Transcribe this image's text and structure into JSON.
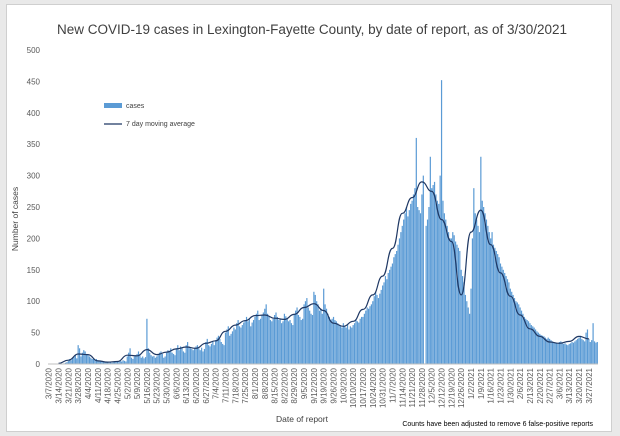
{
  "chart_data": {
    "type": "bar",
    "title": "New COVID-19 cases in Lexington-Fayette County, by date of report, as of 3/30/2021",
    "xlabel": "Date of report",
    "ylabel": "Number of cases",
    "ylim": [
      0,
      500
    ],
    "yticks": [
      "0",
      "50",
      "100",
      "150",
      "200",
      "250",
      "300",
      "350",
      "400",
      "450",
      "500"
    ],
    "grid": false,
    "legend_position": "upper-left",
    "annotation": "Counts have been adjusted to remove 6 false-positive reports",
    "xtick_labels": [
      "3/7/2020",
      "3/14/2020",
      "3/21/2020",
      "3/28/2020",
      "4/4/2020",
      "4/11/2020",
      "4/18/2020",
      "4/25/2020",
      "5/2/2020",
      "5/9/2020",
      "5/16/2020",
      "5/23/2020",
      "5/30/2020",
      "6/6/2020",
      "6/13/2020",
      "6/20/2020",
      "6/27/2020",
      "7/4/2020",
      "7/11/2020",
      "7/18/2020",
      "7/25/2020",
      "8/1/2020",
      "8/8/2020",
      "8/15/2020",
      "8/22/2020",
      "8/29/2020",
      "9/5/2020",
      "9/12/2020",
      "9/19/2020",
      "9/26/2020",
      "10/3/2020",
      "10/10/2020",
      "10/17/2020",
      "10/24/2020",
      "10/31/2020",
      "11/7/2020",
      "11/14/2020",
      "11/21/2020",
      "11/28/2020",
      "12/5/2020",
      "12/12/2020",
      "12/19/2020",
      "12/26/2020",
      "1/2/2021",
      "1/9/2021",
      "1/16/2021",
      "1/23/2021",
      "1/30/2021",
      "2/6/2021",
      "2/13/2021",
      "2/20/2021",
      "2/27/2021",
      "3/6/2021",
      "3/13/2021",
      "3/20/2021",
      "3/27/2021"
    ],
    "series": [
      {
        "name": "cases",
        "kind": "bar",
        "color": "#5b9bd5",
        "weekly_start_dates": [
          "3/7/2020",
          "3/14/2020",
          "3/21/2020",
          "3/28/2020",
          "4/4/2020",
          "4/11/2020",
          "4/18/2020",
          "4/25/2020",
          "5/2/2020",
          "5/9/2020",
          "5/16/2020",
          "5/23/2020",
          "5/30/2020",
          "6/6/2020",
          "6/13/2020",
          "6/20/2020",
          "6/27/2020",
          "7/4/2020",
          "7/11/2020",
          "7/18/2020",
          "7/25/2020",
          "8/1/2020",
          "8/8/2020",
          "8/15/2020",
          "8/22/2020",
          "8/29/2020",
          "9/5/2020",
          "9/12/2020",
          "9/19/2020",
          "9/26/2020",
          "10/3/2020",
          "10/10/2020",
          "10/17/2020",
          "10/24/2020",
          "10/31/2020",
          "11/7/2020",
          "11/14/2020",
          "11/21/2020",
          "11/28/2020",
          "12/5/2020",
          "12/12/2020",
          "12/19/2020",
          "12/26/2020",
          "1/2/2021",
          "1/9/2021",
          "1/16/2021",
          "1/23/2021",
          "1/30/2021",
          "2/6/2021",
          "2/13/2021",
          "2/20/2021",
          "2/27/2021",
          "3/6/2021",
          "3/13/2021",
          "3/20/2021",
          "3/27/2021"
        ],
        "values": [
          [
            0,
            0,
            0,
            0,
            0,
            0,
            0
          ],
          [
            0,
            0,
            0,
            0,
            1,
            2,
            3
          ],
          [
            5,
            8,
            6,
            10,
            12,
            14,
            9
          ],
          [
            30,
            25,
            12,
            18,
            22,
            20,
            16
          ],
          [
            15,
            12,
            10,
            8,
            9,
            7,
            8
          ],
          [
            6,
            5,
            4,
            5,
            4,
            3,
            4
          ],
          [
            3,
            2,
            3,
            2,
            3,
            4,
            3
          ],
          [
            4,
            3,
            5,
            4,
            6,
            5,
            4
          ],
          [
            12,
            18,
            25,
            10,
            8,
            12,
            14
          ],
          [
            16,
            20,
            14,
            10,
            12,
            9,
            11
          ],
          [
            72,
            25,
            18,
            14,
            12,
            13,
            10
          ],
          [
            12,
            15,
            18,
            20,
            16,
            10,
            12
          ],
          [
            18,
            22,
            20,
            25,
            18,
            16,
            14
          ],
          [
            25,
            30,
            22,
            28,
            26,
            20,
            18
          ],
          [
            30,
            35,
            28,
            25,
            24,
            22,
            26
          ],
          [
            28,
            30,
            25,
            22,
            26,
            20,
            24
          ],
          [
            35,
            40,
            30,
            28,
            32,
            36,
            30
          ],
          [
            38,
            42,
            45,
            40,
            35,
            32,
            30
          ],
          [
            50,
            55,
            60,
            45,
            48,
            52,
            58
          ],
          [
            55,
            65,
            70,
            60,
            58,
            62,
            66
          ],
          [
            70,
            75,
            68,
            72,
            60,
            66,
            70
          ],
          [
            75,
            80,
            85,
            70,
            72,
            78,
            82
          ],
          [
            88,
            95,
            80,
            75,
            70,
            68,
            72
          ],
          [
            78,
            82,
            75,
            70,
            72,
            65,
            68
          ],
          [
            80,
            76,
            72,
            68,
            70,
            65,
            62
          ],
          [
            80,
            85,
            90,
            78,
            75,
            70,
            72
          ],
          [
            95,
            100,
            105,
            90,
            85,
            80,
            78
          ],
          [
            115,
            110,
            100,
            95,
            85,
            88,
            80
          ],
          [
            120,
            95,
            88,
            80,
            75,
            70,
            72
          ],
          [
            75,
            70,
            68,
            65,
            62,
            60,
            58
          ],
          [
            65,
            60,
            58,
            62,
            55,
            60,
            58
          ],
          [
            62,
            65,
            70,
            68,
            66,
            72,
            75
          ],
          [
            75,
            80,
            85,
            90,
            88,
            92,
            95
          ],
          [
            100,
            108,
            115,
            110,
            105,
            112,
            118
          ],
          [
            125,
            130,
            140,
            135,
            145,
            150,
            155
          ],
          [
            160,
            170,
            175,
            180,
            190,
            200,
            210
          ],
          [
            220,
            230,
            240,
            250,
            235,
            245,
            255
          ],
          [
            260,
            270,
            280,
            360,
            250,
            245,
            240
          ],
          [
            270,
            300,
            0,
            220,
            230,
            250,
            330
          ],
          [
            280,
            285,
            290,
            270,
            260,
            255,
            300
          ],
          [
            452,
            260,
            240,
            230,
            220,
            210,
            200
          ],
          [
            200,
            210,
            205,
            195,
            190,
            185,
            180
          ],
          [
            150,
            140,
            130,
            110,
            100,
            90,
            80
          ],
          [
            120,
            200,
            280,
            240,
            230,
            220,
            210
          ],
          [
            330,
            260,
            250,
            240,
            230,
            220,
            210
          ],
          [
            200,
            210,
            190,
            185,
            180,
            175,
            170
          ],
          [
            160,
            155,
            150,
            145,
            140,
            135,
            130
          ],
          [
            120,
            115,
            110,
            105,
            100,
            98,
            95
          ],
          [
            90,
            85,
            80,
            75,
            72,
            70,
            68
          ],
          [
            65,
            62,
            60,
            58,
            55,
            52,
            50
          ],
          [
            48,
            46,
            45,
            44,
            42,
            40,
            42
          ],
          [
            40,
            38,
            36,
            35,
            34,
            33,
            32
          ],
          [
            35,
            36,
            34,
            32,
            33,
            31,
            30
          ],
          [
            32,
            33,
            35,
            34,
            36,
            38,
            40
          ],
          [
            42,
            45,
            40,
            38,
            36,
            50,
            55
          ],
          [
            40,
            35,
            38,
            65,
            36,
            34,
            35
          ]
        ]
      },
      {
        "name": "7 day moving average",
        "kind": "line",
        "color": "#1f3864",
        "points": [
          [
            "3/14/2020",
            1
          ],
          [
            "3/21/2020",
            6
          ],
          [
            "3/28/2020",
            16
          ],
          [
            "4/4/2020",
            15
          ],
          [
            "4/11/2020",
            5
          ],
          [
            "4/18/2020",
            3
          ],
          [
            "4/25/2020",
            4
          ],
          [
            "5/2/2020",
            14
          ],
          [
            "5/9/2020",
            13
          ],
          [
            "5/16/2020",
            23
          ],
          [
            "5/23/2020",
            15
          ],
          [
            "5/30/2020",
            19
          ],
          [
            "6/6/2020",
            24
          ],
          [
            "6/13/2020",
            27
          ],
          [
            "6/20/2020",
            25
          ],
          [
            "6/27/2020",
            33
          ],
          [
            "7/4/2020",
            37
          ],
          [
            "7/11/2020",
            52
          ],
          [
            "7/18/2020",
            62
          ],
          [
            "7/25/2020",
            69
          ],
          [
            "8/1/2020",
            77
          ],
          [
            "8/8/2020",
            78
          ],
          [
            "8/15/2020",
            73
          ],
          [
            "8/22/2020",
            71
          ],
          [
            "8/29/2020",
            79
          ],
          [
            "9/5/2020",
            90
          ],
          [
            "9/12/2020",
            96
          ],
          [
            "9/19/2020",
            85
          ],
          [
            "9/26/2020",
            65
          ],
          [
            "10/3/2020",
            60
          ],
          [
            "10/10/2020",
            68
          ],
          [
            "10/17/2020",
            87
          ],
          [
            "10/24/2020",
            110
          ],
          [
            "10/31/2020",
            140
          ],
          [
            "11/7/2020",
            184
          ],
          [
            "11/14/2020",
            240
          ],
          [
            "11/21/2020",
            265
          ],
          [
            "11/28/2020",
            290
          ],
          [
            "12/5/2020",
            275
          ],
          [
            "12/12/2020",
            230
          ],
          [
            "12/19/2020",
            195
          ],
          [
            "12/26/2020",
            110
          ],
          [
            "1/2/2021",
            210
          ],
          [
            "1/9/2021",
            245
          ],
          [
            "1/16/2021",
            190
          ],
          [
            "1/23/2021",
            145
          ],
          [
            "1/30/2021",
            108
          ],
          [
            "2/6/2021",
            78
          ],
          [
            "2/13/2021",
            56
          ],
          [
            "2/20/2021",
            44
          ],
          [
            "2/27/2021",
            35
          ],
          [
            "3/6/2021",
            33
          ],
          [
            "3/13/2021",
            36
          ],
          [
            "3/20/2021",
            44
          ],
          [
            "3/27/2021",
            40
          ]
        ]
      }
    ]
  }
}
